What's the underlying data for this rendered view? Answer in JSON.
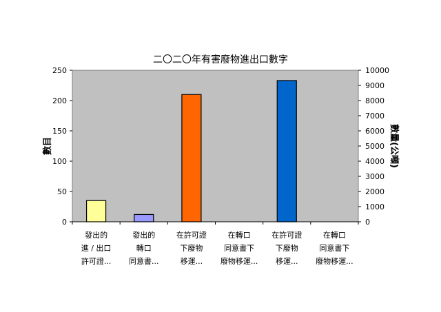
{
  "chart_data": {
    "type": "bar",
    "title": "二〇二〇年有害廢物進出口數字",
    "ylabel": "數目",
    "y2label": "數量(公噸)",
    "ylim": [
      0,
      250
    ],
    "y2lim": [
      0,
      10000
    ],
    "yticks": [
      0,
      50,
      100,
      150,
      200,
      250
    ],
    "y2ticks": [
      0,
      1000,
      2000,
      3000,
      4000,
      5000,
      6000,
      7000,
      8000,
      9000,
      10000
    ],
    "categories": [
      [
        "發出的",
        "進 / 出口",
        "許可證..."
      ],
      [
        "發出的",
        "轉口",
        "同意書..."
      ],
      [
        "在許可證",
        "下廢物",
        "移運..."
      ],
      [
        "在轉口",
        "同意書下",
        "廢物移運..."
      ],
      [
        "在許可證",
        "下廢物",
        "移運..."
      ],
      [
        "在轉口",
        "同意書下",
        "廢物移運..."
      ]
    ],
    "values": [
      35,
      12,
      210,
      0,
      233,
      0
    ],
    "colors": [
      "#FFFF99",
      "#9999FF",
      "#FF6600",
      "#993366",
      "#0066CC",
      "#CCFFFF"
    ],
    "plot_background": "#C0C0C0",
    "grid": false,
    "legend": "none"
  }
}
